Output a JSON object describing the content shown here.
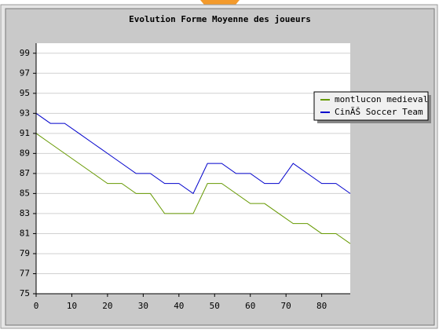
{
  "chart_data": {
    "type": "line",
    "title": "Evolution Forme Moyenne des joueurs",
    "x": [
      0,
      4,
      8,
      12,
      16,
      20,
      24,
      28,
      32,
      36,
      40,
      44,
      48,
      52,
      56,
      60,
      64,
      68,
      72,
      76,
      80,
      84,
      88
    ],
    "series": [
      {
        "name": "montlucon medieval",
        "color": "#669900",
        "values": [
          91,
          90,
          89,
          88,
          87,
          86,
          86,
          85,
          85,
          83,
          83,
          83,
          86,
          86,
          85,
          84,
          84,
          83,
          82,
          82,
          81,
          81,
          80
        ]
      },
      {
        "name": "CinÃŠ Soccer Team",
        "color": "#0000cc",
        "values": [
          93,
          92,
          92,
          91,
          90,
          89,
          88,
          87,
          87,
          86,
          86,
          85,
          88,
          88,
          87,
          87,
          86,
          86,
          88,
          87,
          86,
          86,
          85
        ]
      }
    ],
    "xlim": [
      0,
      88
    ],
    "xticks": [
      0,
      10,
      20,
      30,
      40,
      50,
      60,
      70,
      80
    ],
    "ylim": [
      75,
      100
    ],
    "yticks": [
      75,
      77,
      79,
      81,
      83,
      85,
      87,
      89,
      91,
      93,
      95,
      97,
      99
    ],
    "grid": true,
    "legend": "right"
  }
}
